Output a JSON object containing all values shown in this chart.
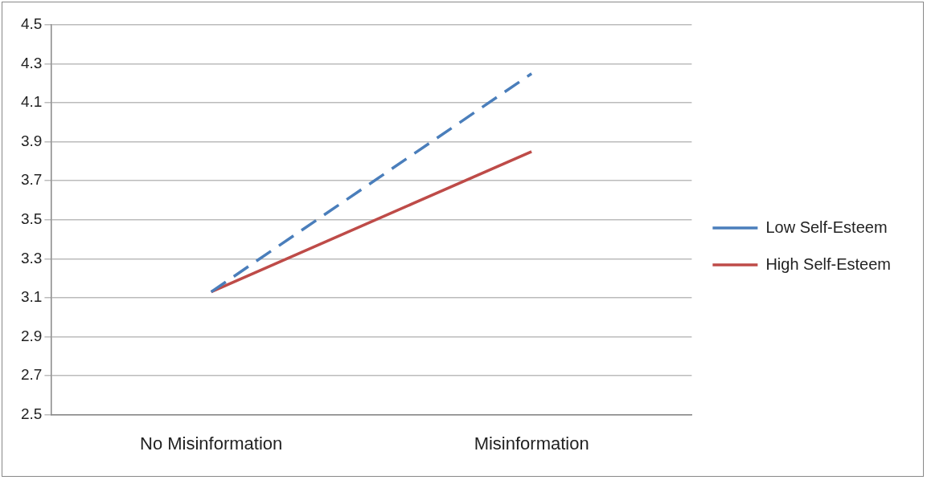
{
  "chart_data": {
    "type": "line",
    "categories": [
      "No Misinformation",
      "Misinformation"
    ],
    "series": [
      {
        "name": "Low Self-Esteem",
        "color": "#4a7ebb",
        "values": [
          3.13,
          4.25
        ],
        "line_style": "dashed"
      },
      {
        "name": "High Self-Esteem",
        "color": "#be4b48",
        "values": [
          3.13,
          3.85
        ],
        "line_style": "solid"
      }
    ],
    "ylim": [
      2.5,
      4.5
    ],
    "yticks": [
      2.5,
      2.7,
      2.9,
      3.1,
      3.3,
      3.5,
      3.7,
      3.9,
      4.1,
      4.3,
      4.5
    ],
    "grid": "y",
    "legend": "right",
    "marker": "none"
  }
}
